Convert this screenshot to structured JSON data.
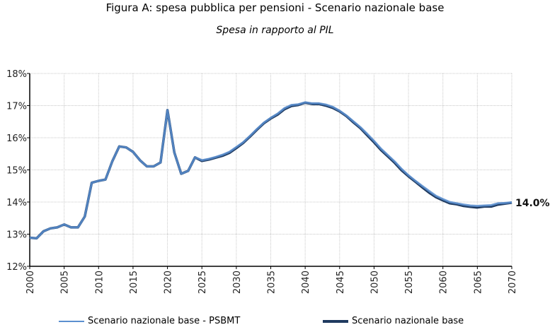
{
  "chart_data": {
    "type": "line",
    "title": "Figura A: spesa pubblica per pensioni - Scenario nazionale base",
    "subtitle": "Spesa in rapporto al PIL",
    "xlabel": "",
    "ylabel": "",
    "xlim": [
      2000,
      2070
    ],
    "ylim": [
      12,
      18
    ],
    "x_ticks": [
      "2000",
      "2005",
      "2010",
      "2015",
      "2020",
      "2025",
      "2030",
      "2035",
      "2040",
      "2045",
      "2050",
      "2055",
      "2060",
      "2065",
      "2070"
    ],
    "y_ticks": [
      "12%",
      "13%",
      "14%",
      "15%",
      "16%",
      "17%",
      "18%"
    ],
    "grid": true,
    "legend_position": "bottom",
    "end_label": "14.0%",
    "x": [
      2000,
      2001,
      2002,
      2003,
      2004,
      2005,
      2006,
      2007,
      2008,
      2009,
      2010,
      2011,
      2012,
      2013,
      2014,
      2015,
      2016,
      2017,
      2018,
      2019,
      2020,
      2021,
      2022,
      2023,
      2024,
      2025,
      2026,
      2027,
      2028,
      2029,
      2030,
      2031,
      2032,
      2033,
      2034,
      2035,
      2036,
      2037,
      2038,
      2039,
      2040,
      2041,
      2042,
      2043,
      2044,
      2045,
      2046,
      2047,
      2048,
      2049,
      2050,
      2051,
      2052,
      2053,
      2054,
      2055,
      2056,
      2057,
      2058,
      2059,
      2060,
      2061,
      2062,
      2063,
      2064,
      2065,
      2066,
      2067,
      2068,
      2069,
      2070
    ],
    "series": [
      {
        "name": "Scenario nazionale base - PSBMT",
        "color": "#5b8fd0",
        "values": [
          12.89,
          12.87,
          13.09,
          13.18,
          13.21,
          13.3,
          13.21,
          13.21,
          13.55,
          14.6,
          14.66,
          14.7,
          15.27,
          15.73,
          15.7,
          15.56,
          15.3,
          15.11,
          15.11,
          15.23,
          16.86,
          15.54,
          14.88,
          14.97,
          15.39,
          15.3,
          15.34,
          15.4,
          15.47,
          15.56,
          15.71,
          15.86,
          16.06,
          16.27,
          16.47,
          16.62,
          16.75,
          16.92,
          17.02,
          17.04,
          17.1,
          17.07,
          17.07,
          17.03,
          16.96,
          16.84,
          16.69,
          16.51,
          16.33,
          16.12,
          15.9,
          15.66,
          15.46,
          15.26,
          15.03,
          14.83,
          14.66,
          14.5,
          14.34,
          14.19,
          14.09,
          14.0,
          13.96,
          13.92,
          13.89,
          13.88,
          13.89,
          13.9,
          13.96,
          13.97,
          13.99
        ]
      },
      {
        "name": "Scenario nazionale base",
        "color": "#1f3a5f",
        "values": [
          12.89,
          12.87,
          13.09,
          13.18,
          13.21,
          13.3,
          13.21,
          13.21,
          13.55,
          14.6,
          14.66,
          14.7,
          15.27,
          15.73,
          15.7,
          15.56,
          15.3,
          15.11,
          15.11,
          15.23,
          16.86,
          15.54,
          14.88,
          14.97,
          15.39,
          15.28,
          15.32,
          15.38,
          15.44,
          15.53,
          15.68,
          15.84,
          16.04,
          16.25,
          16.45,
          16.6,
          16.72,
          16.89,
          16.99,
          17.02,
          17.09,
          17.05,
          17.05,
          17.0,
          16.93,
          16.82,
          16.67,
          16.48,
          16.3,
          16.08,
          15.86,
          15.62,
          15.42,
          15.22,
          14.99,
          14.8,
          14.63,
          14.46,
          14.29,
          14.15,
          14.05,
          13.96,
          13.93,
          13.88,
          13.85,
          13.83,
          13.86,
          13.86,
          13.92,
          13.95,
          13.98
        ]
      }
    ]
  }
}
